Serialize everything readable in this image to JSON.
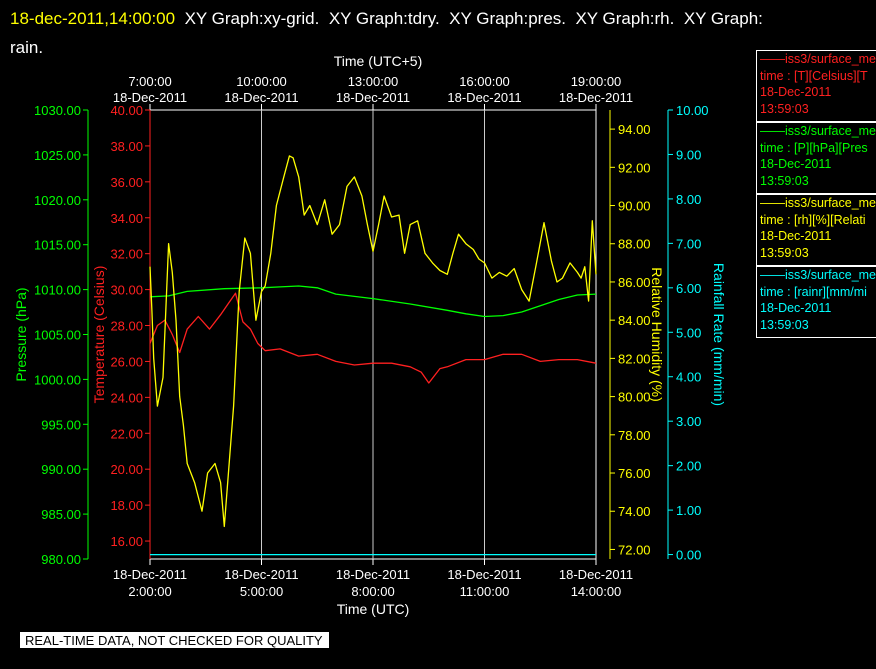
{
  "header": {
    "timestamp": "18-dec-2011,14:00:00",
    "graphs": [
      "XY Graph:xy-grid.",
      "XY Graph:tdry.",
      "XY Graph:pres.",
      "XY Graph:rh.",
      "XY Graph:"
    ],
    "wrap": "rain."
  },
  "top_axis": {
    "title": "Time (UTC+5)",
    "ticks": [
      {
        "time": "7:00:00",
        "date": "18-Dec-2011"
      },
      {
        "time": "10:00:00",
        "date": "18-Dec-2011"
      },
      {
        "time": "13:00:00",
        "date": "18-Dec-2011"
      },
      {
        "time": "16:00:00",
        "date": "18-Dec-2011"
      },
      {
        "time": "19:00:00",
        "date": "18-Dec-2011"
      }
    ]
  },
  "bottom_axis": {
    "title": "Time (UTC)",
    "ticks": [
      {
        "date": "18-Dec-2011",
        "time": "2:00:00"
      },
      {
        "date": "18-Dec-2011",
        "time": "5:00:00"
      },
      {
        "date": "18-Dec-2011",
        "time": "8:00:00"
      },
      {
        "date": "18-Dec-2011",
        "time": "11:00:00"
      },
      {
        "date": "18-Dec-2011",
        "time": "14:00:00"
      }
    ]
  },
  "legends": [
    {
      "line1": "——iss3/surface_me",
      "line2": "time : [T][Celsius][T",
      "line3": "18-Dec-2011",
      "line4": "13:59:03",
      "color": "#ff2020"
    },
    {
      "line1": "——iss3/surface_me",
      "line2": "time : [P][hPa][Pres",
      "line3": "18-Dec-2011",
      "line4": "13:59:03",
      "color": "#00ff00"
    },
    {
      "line1": "——iss3/surface_me",
      "line2": "time : [rh][%][Relati",
      "line3": "18-Dec-2011",
      "line4": "13:59:03",
      "color": "#ffff00"
    },
    {
      "line1": "——iss3/surface_me",
      "line2": "time : [rainr][mm/mi",
      "line3": "18-Dec-2011",
      "line4": "13:59:03",
      "color": "#00ffff"
    }
  ],
  "footer_note": "REAL-TIME DATA, NOT CHECKED FOR QUALITY",
  "chart_data": {
    "type": "line",
    "x_range": [
      "2:00",
      "14:00"
    ],
    "x_unit": "hours UTC",
    "axes": {
      "pressure": {
        "label": "Pressure (hPa)",
        "range": [
          980,
          1030
        ],
        "color": "#00ff00",
        "ticks": [
          "980.00",
          "985.00",
          "990.00",
          "995.00",
          "1000.00",
          "1005.00",
          "1010.00",
          "1015.00",
          "1020.00",
          "1025.00",
          "1030.00"
        ]
      },
      "temperature": {
        "label": "Temperature (Celsius)",
        "range": [
          15,
          40
        ],
        "color": "#ff2020",
        "ticks": [
          "16.00",
          "18.00",
          "20.00",
          "22.00",
          "24.00",
          "26.00",
          "28.00",
          "30.00",
          "32.00",
          "34.00",
          "36.00",
          "38.00",
          "40.00"
        ]
      },
      "humidity": {
        "label": "Relative Humidity (%)",
        "range": [
          71.5,
          95
        ],
        "color": "#ffff00",
        "ticks": [
          "72.00",
          "74.00",
          "76.00",
          "78.00",
          "80.00",
          "82.00",
          "84.00",
          "86.00",
          "88.00",
          "90.00",
          "92.00",
          "94.00"
        ]
      },
      "rain": {
        "label": "Rainfall Rate (mm/min)",
        "range": [
          -0.1,
          10
        ],
        "color": "#00ffff",
        "ticks": [
          "0.00",
          "1.00",
          "2.00",
          "3.00",
          "4.00",
          "5.00",
          "6.00",
          "7.00",
          "8.00",
          "9.00",
          "10.00"
        ]
      }
    },
    "series": [
      {
        "name": "T",
        "axis": "temperature",
        "color": "#ff2020",
        "x": [
          2.0,
          2.2,
          2.4,
          2.6,
          2.8,
          3.0,
          3.3,
          3.6,
          3.9,
          4.1,
          4.3,
          4.5,
          4.7,
          4.9,
          5.1,
          5.5,
          6.0,
          6.5,
          7.0,
          7.5,
          8.0,
          8.5,
          9.0,
          9.3,
          9.5,
          9.8,
          10.0,
          10.5,
          11.0,
          11.5,
          12.0,
          12.5,
          13.0,
          13.5,
          14.0
        ],
        "y": [
          27.0,
          28.0,
          28.3,
          27.5,
          26.5,
          27.8,
          28.5,
          27.8,
          28.6,
          29.2,
          29.8,
          28.2,
          27.8,
          27.0,
          26.6,
          26.7,
          26.3,
          26.4,
          26.0,
          25.8,
          25.9,
          25.9,
          25.7,
          25.4,
          24.8,
          25.6,
          25.7,
          26.1,
          26.1,
          26.4,
          26.4,
          26.0,
          26.1,
          26.1,
          25.9
        ]
      },
      {
        "name": "P",
        "axis": "pressure",
        "color": "#00ff00",
        "x": [
          2.0,
          2.5,
          3.0,
          4.0,
          5.0,
          5.5,
          6.0,
          6.5,
          7.0,
          8.0,
          9.0,
          10.0,
          10.5,
          11.0,
          11.5,
          12.0,
          12.5,
          13.0,
          13.5,
          14.0
        ],
        "y": [
          1009.2,
          1009.3,
          1009.8,
          1010.1,
          1010.2,
          1010.3,
          1010.4,
          1010.2,
          1009.5,
          1009.0,
          1008.4,
          1007.7,
          1007.3,
          1007.0,
          1007.1,
          1007.5,
          1008.2,
          1008.9,
          1009.4,
          1009.5
        ]
      },
      {
        "name": "rh",
        "axis": "humidity",
        "color": "#ffff00",
        "x": [
          2.0,
          2.05,
          2.1,
          2.2,
          2.35,
          2.5,
          2.6,
          2.7,
          2.8,
          2.9,
          3.0,
          3.2,
          3.4,
          3.55,
          3.75,
          3.9,
          4.0,
          4.15,
          4.25,
          4.4,
          4.55,
          4.7,
          4.85,
          5.0,
          5.1,
          5.25,
          5.4,
          5.6,
          5.75,
          5.85,
          6.0,
          6.15,
          6.3,
          6.5,
          6.7,
          6.9,
          7.1,
          7.3,
          7.5,
          7.7,
          7.85,
          8.0,
          8.15,
          8.3,
          8.5,
          8.7,
          8.85,
          9.0,
          9.2,
          9.4,
          9.6,
          9.8,
          10.0,
          10.15,
          10.3,
          10.5,
          10.7,
          10.85,
          11.0,
          11.2,
          11.4,
          11.6,
          11.8,
          12.0,
          12.2,
          12.4,
          12.6,
          12.8,
          12.95,
          13.1,
          13.3,
          13.5,
          13.6,
          13.7,
          13.8,
          13.9,
          14.0
        ],
        "y": [
          86.8,
          84.5,
          82.0,
          79.5,
          81.0,
          88.0,
          86.5,
          84.0,
          80.0,
          78.5,
          76.5,
          75.5,
          74.0,
          76.0,
          76.5,
          75.5,
          73.2,
          77.0,
          79.5,
          85.5,
          88.3,
          87.5,
          84.0,
          85.5,
          85.8,
          87.5,
          90.0,
          91.5,
          92.6,
          92.5,
          91.5,
          89.5,
          90.0,
          89.0,
          90.3,
          88.5,
          89.0,
          91.0,
          91.5,
          90.5,
          89.0,
          87.6,
          89.0,
          90.5,
          89.4,
          89.5,
          87.5,
          89.0,
          89.2,
          87.5,
          87.0,
          86.6,
          86.4,
          87.5,
          88.5,
          88.0,
          87.7,
          87.2,
          87.0,
          86.2,
          86.5,
          86.3,
          86.7,
          85.6,
          85.0,
          87.0,
          89.1,
          87.1,
          86.0,
          86.2,
          87.0,
          86.5,
          86.2,
          86.8,
          85.0,
          89.2,
          86.4
        ]
      },
      {
        "name": "rainr",
        "axis": "rain",
        "color": "#00ffff",
        "x": [
          2.0,
          14.0
        ],
        "y": [
          0.0,
          0.0
        ]
      }
    ]
  }
}
